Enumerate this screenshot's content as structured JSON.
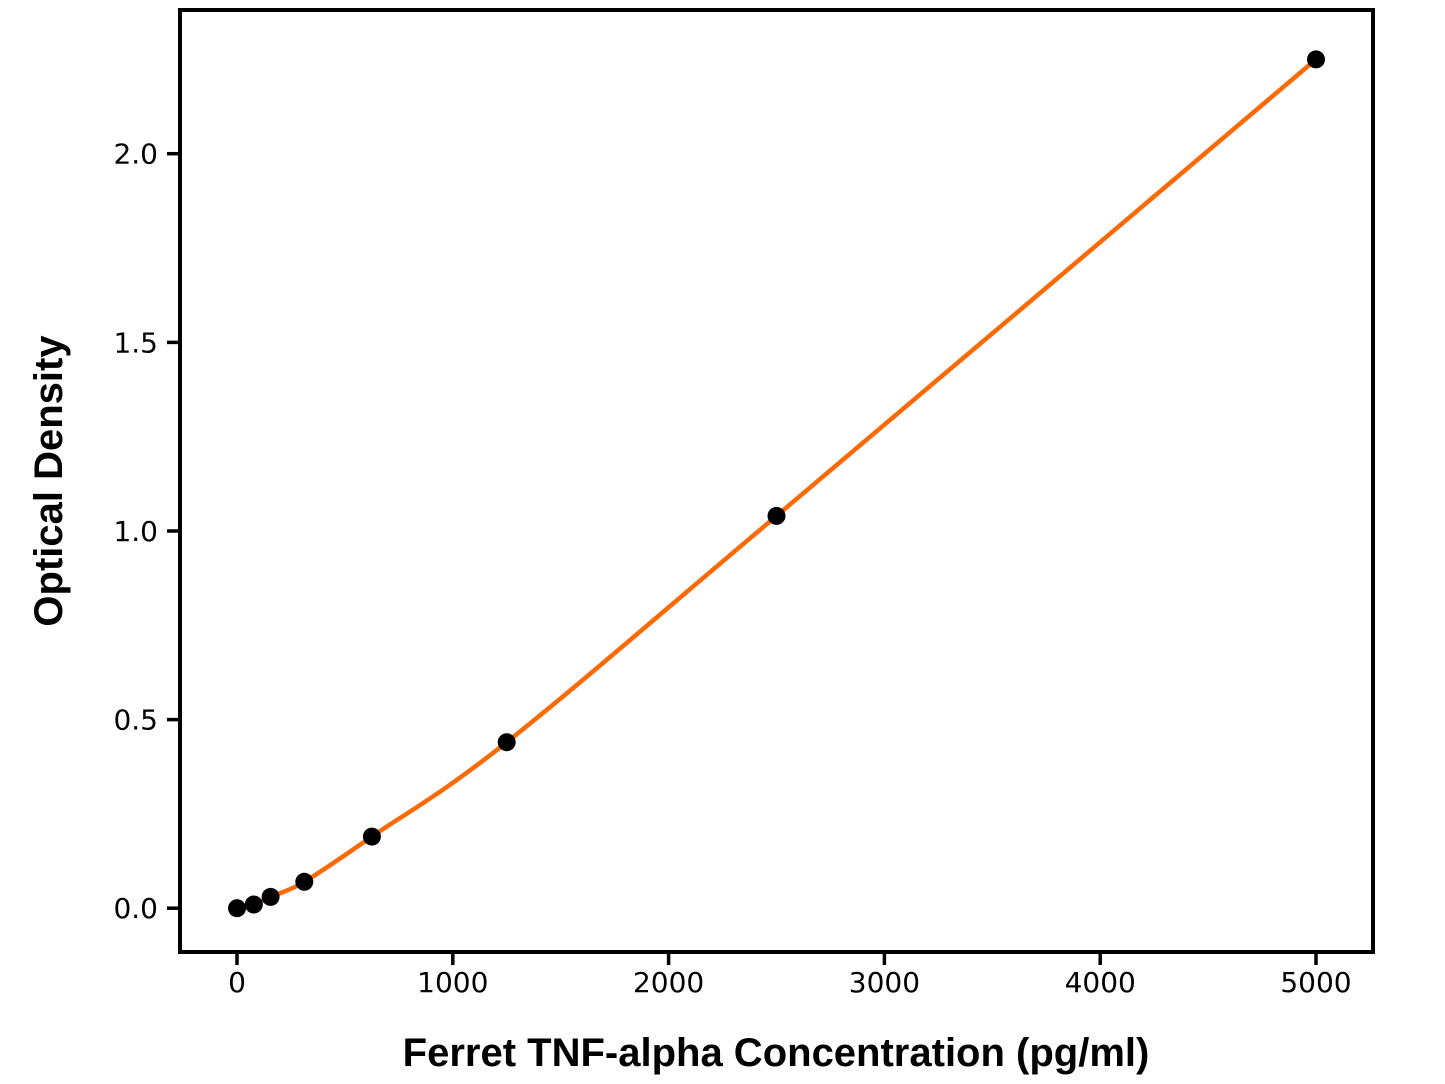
{
  "chart_data": {
    "type": "line",
    "subtype": "scatter-with-fitted-curve",
    "title": "",
    "xlabel": "Ferret TNF-alpha Concentration (pg/ml)",
    "ylabel": "Optical Density",
    "x": [
      0,
      78,
      156,
      312,
      625,
      1250,
      2500,
      5000
    ],
    "y": [
      0.0,
      0.01,
      0.03,
      0.07,
      0.19,
      0.44,
      1.04,
      2.25
    ],
    "x_ticks": [
      0,
      1000,
      2000,
      3000,
      4000,
      5000
    ],
    "x_tick_labels": [
      "0",
      "1000",
      "2000",
      "3000",
      "4000",
      "5000"
    ],
    "y_ticks": [
      0.0,
      0.5,
      1.0,
      1.5,
      2.0
    ],
    "y_tick_labels": [
      "0.0",
      "0.5",
      "1.0",
      "1.5",
      "2.0"
    ],
    "xlim": [
      -264,
      5264
    ],
    "ylim": [
      -0.116,
      2.381
    ],
    "grid": false,
    "legend": null,
    "colors": {
      "curve": "#fb6a05",
      "marker": "#000000",
      "axis": "#000000",
      "background": "#ffffff"
    }
  }
}
